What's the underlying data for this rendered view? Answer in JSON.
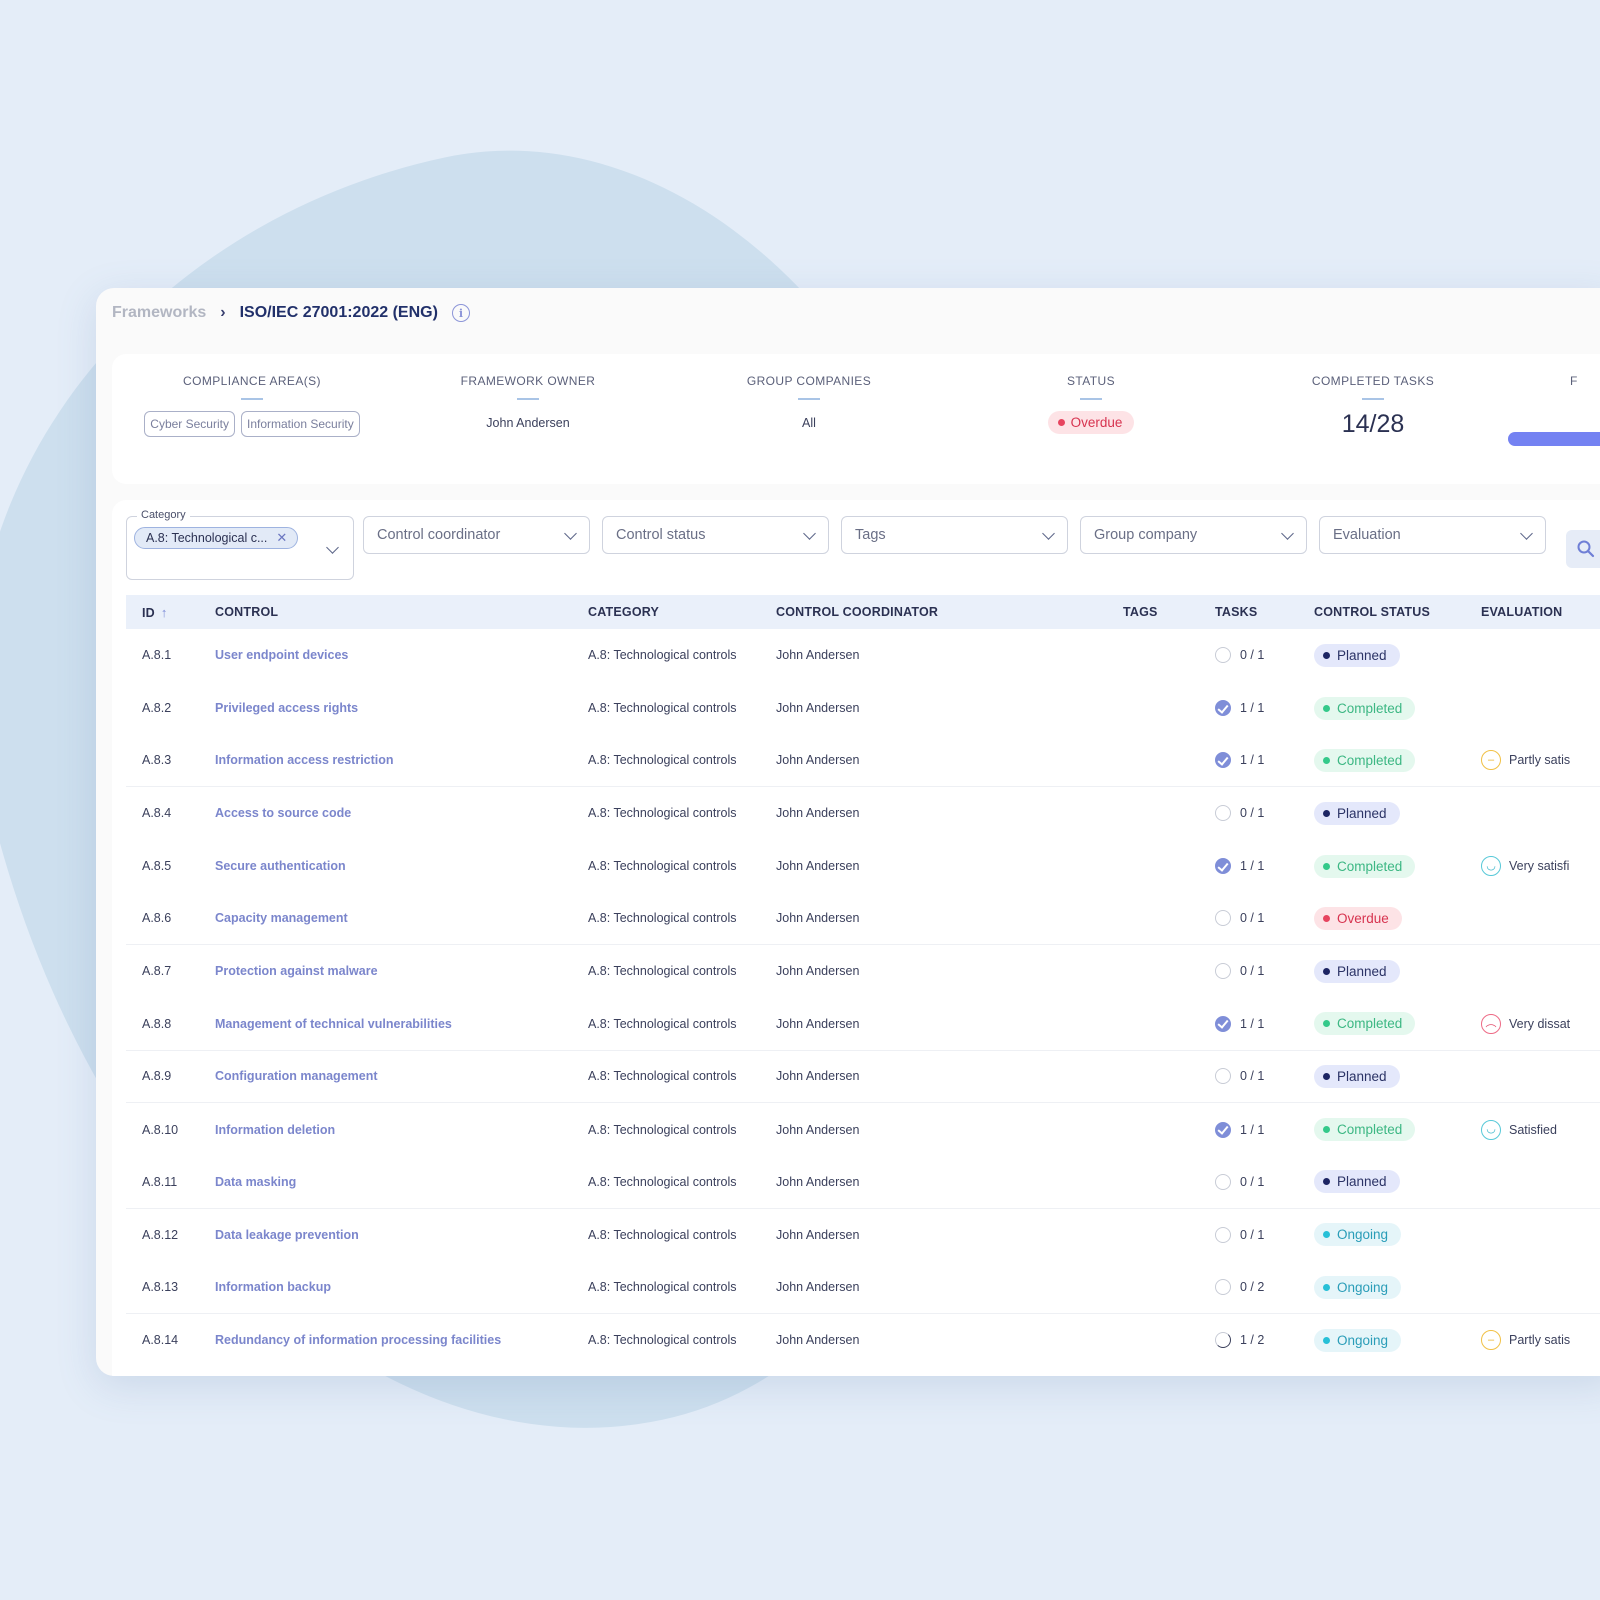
{
  "breadcrumb": {
    "parent": "Frameworks",
    "separator": "›",
    "current": "ISO/IEC 27001:2022 (ENG)"
  },
  "summary": {
    "compliance_label": "COMPLIANCE AREA(S)",
    "compliance_areas": [
      "Cyber Security",
      "Information Security"
    ],
    "owner_label": "FRAMEWORK OWNER",
    "owner_value": "John Andersen",
    "group_label": "GROUP COMPANIES",
    "group_value": "All",
    "status_label": "STATUS",
    "status_value": "Overdue",
    "tasks_label": "COMPLETED TASKS",
    "tasks_value": "14/28",
    "partial_label": "F"
  },
  "filters": {
    "category_legend": "Category",
    "category_chip": "A.8: Technological c...",
    "control_coordinator": "Control coordinator",
    "control_status": "Control status",
    "tags": "Tags",
    "group_company": "Group company",
    "evaluation": "Evaluation"
  },
  "columns": {
    "id": "ID",
    "control": "CONTROL",
    "category": "CATEGORY",
    "coordinator": "CONTROL COORDINATOR",
    "tags": "TAGS",
    "tasks": "TASKS",
    "status": "CONTROL STATUS",
    "evaluation": "EVALUATION"
  },
  "rows": [
    {
      "id": "A.8.1",
      "control": "User endpoint devices",
      "category": "A.8: Technological controls",
      "coordinator": "John Andersen",
      "tasks": "0 / 1",
      "task_state": "open",
      "status": "Planned",
      "evaluation": "",
      "eval_icon": ""
    },
    {
      "id": "A.8.2",
      "control": "Privileged access rights",
      "category": "A.8: Technological controls",
      "coordinator": "John Andersen",
      "tasks": "1 / 1",
      "task_state": "done",
      "status": "Completed",
      "evaluation": "",
      "eval_icon": ""
    },
    {
      "id": "A.8.3",
      "control": "Information access restriction",
      "category": "A.8: Technological controls",
      "coordinator": "John Andersen",
      "tasks": "1 / 1",
      "task_state": "done",
      "status": "Completed",
      "evaluation": "Partly satis",
      "eval_icon": "neutral-face-icon"
    },
    {
      "id": "A.8.4",
      "control": "Access to source code",
      "category": "A.8: Technological controls",
      "coordinator": "John Andersen",
      "tasks": "0 / 1",
      "task_state": "open",
      "status": "Planned",
      "evaluation": "",
      "eval_icon": ""
    },
    {
      "id": "A.8.5",
      "control": "Secure authentication",
      "category": "A.8: Technological controls",
      "coordinator": "John Andersen",
      "tasks": "1 / 1",
      "task_state": "done",
      "status": "Completed",
      "evaluation": "Very satisfi",
      "eval_icon": "happy-face-icon"
    },
    {
      "id": "A.8.6",
      "control": "Capacity management",
      "category": "A.8: Technological controls",
      "coordinator": "John Andersen",
      "tasks": "0 / 1",
      "task_state": "open",
      "status": "Overdue",
      "evaluation": "",
      "eval_icon": ""
    },
    {
      "id": "A.8.7",
      "control": "Protection against malware",
      "category": "A.8: Technological controls",
      "coordinator": "John Andersen",
      "tasks": "0 / 1",
      "task_state": "open",
      "status": "Planned",
      "evaluation": "",
      "eval_icon": ""
    },
    {
      "id": "A.8.8",
      "control": "Management of technical vulnerabilities",
      "category": "A.8: Technological controls",
      "coordinator": "John Andersen",
      "tasks": "1 / 1",
      "task_state": "done",
      "status": "Completed",
      "evaluation": "Very dissat",
      "eval_icon": "sad-face-icon"
    },
    {
      "id": "A.8.9",
      "control": "Configuration management",
      "category": "A.8: Technological controls",
      "coordinator": "John Andersen",
      "tasks": "0 / 1",
      "task_state": "open",
      "status": "Planned",
      "evaluation": "",
      "eval_icon": ""
    },
    {
      "id": "A.8.10",
      "control": "Information deletion",
      "category": "A.8: Technological controls",
      "coordinator": "John Andersen",
      "tasks": "1 / 1",
      "task_state": "done",
      "status": "Completed",
      "evaluation": "Satisfied",
      "eval_icon": "smile-face-icon"
    },
    {
      "id": "A.8.11",
      "control": "Data masking",
      "category": "A.8: Technological controls",
      "coordinator": "John Andersen",
      "tasks": "0 / 1",
      "task_state": "open",
      "status": "Planned",
      "evaluation": "",
      "eval_icon": ""
    },
    {
      "id": "A.8.12",
      "control": "Data leakage prevention",
      "category": "A.8: Technological controls",
      "coordinator": "John Andersen",
      "tasks": "0 / 1",
      "task_state": "open",
      "status": "Ongoing",
      "evaluation": "",
      "eval_icon": ""
    },
    {
      "id": "A.8.13",
      "control": "Information backup",
      "category": "A.8: Technological controls",
      "coordinator": "John Andersen",
      "tasks": "0 / 2",
      "task_state": "open",
      "status": "Ongoing",
      "evaluation": "",
      "eval_icon": ""
    },
    {
      "id": "A.8.14",
      "control": "Redundancy of information processing facilities",
      "category": "A.8: Technological controls",
      "coordinator": "John Andersen",
      "tasks": "1 / 2",
      "task_state": "partial",
      "status": "Ongoing",
      "evaluation": "Partly satis",
      "eval_icon": "neutral-face-icon"
    }
  ],
  "colors": {
    "accent": "#7482f2",
    "planned": "#1d2563",
    "completed": "#34c98a",
    "overdue": "#e7445f",
    "ongoing": "#27c0d7"
  }
}
